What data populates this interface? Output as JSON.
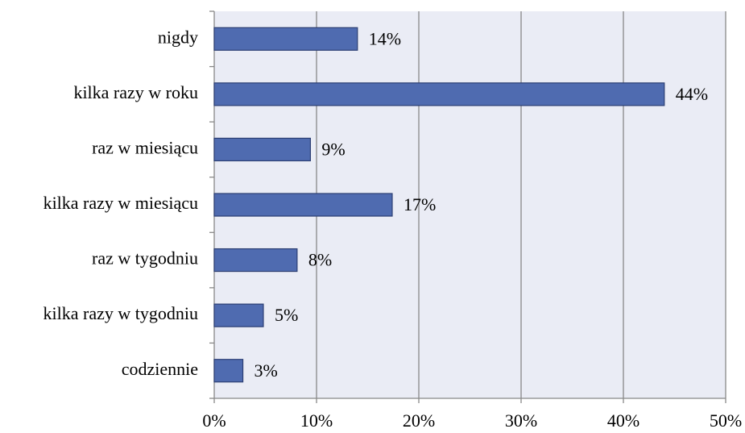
{
  "chart_data": {
    "type": "bar",
    "orientation": "horizontal",
    "categories": [
      "nigdy",
      "kilka razy w roku",
      "raz w miesiącu",
      "kilka razy w miesiącu",
      "raz w tygodniu",
      "kilka razy w tygodniu",
      "codziennie"
    ],
    "values": [
      14,
      44,
      9.4,
      17.4,
      8.1,
      4.8,
      2.8
    ],
    "value_labels": [
      "14%",
      "44%",
      "9%",
      "17%",
      "8%",
      "5%",
      "3%"
    ],
    "color": "#4f6bb0",
    "xlim": [
      0,
      50
    ],
    "xticks": [
      {
        "value": 0,
        "label": "0%"
      },
      {
        "value": 10,
        "label": "10%"
      },
      {
        "value": 20,
        "label": "20%"
      },
      {
        "value": 30,
        "label": "30%"
      },
      {
        "value": 40,
        "label": "40%"
      },
      {
        "value": 50,
        "label": "50%"
      }
    ],
    "grid": true
  }
}
